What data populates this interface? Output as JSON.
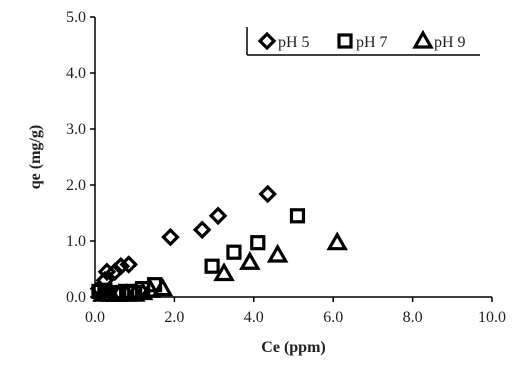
{
  "chart_data": {
    "type": "scatter",
    "xlabel": "Ce (ppm)",
    "ylabel": "qe (mg/g)",
    "xlim": [
      0,
      10
    ],
    "ylim": [
      0,
      5
    ],
    "x_ticks": [
      "0.0",
      "2.0",
      "4.0",
      "6.0",
      "8.0",
      "10.0"
    ],
    "y_ticks": [
      "0.0",
      "1.0",
      "2.0",
      "3.0",
      "4.0",
      "5.0"
    ],
    "grid": false,
    "legend_position": "top-right",
    "series": [
      {
        "name": "pH 5",
        "marker": "diamond",
        "points": [
          [
            0.1,
            0.15
          ],
          [
            0.25,
            0.3
          ],
          [
            0.3,
            0.45
          ],
          [
            0.5,
            0.45
          ],
          [
            0.65,
            0.55
          ],
          [
            0.85,
            0.58
          ],
          [
            1.9,
            1.07
          ],
          [
            2.7,
            1.2
          ],
          [
            3.1,
            1.45
          ],
          [
            4.35,
            1.84
          ]
        ]
      },
      {
        "name": "pH 7",
        "marker": "square",
        "points": [
          [
            0.1,
            0.1
          ],
          [
            0.25,
            0.12
          ],
          [
            0.35,
            0.05
          ],
          [
            0.5,
            0.08
          ],
          [
            0.6,
            0.05
          ],
          [
            0.8,
            0.1
          ],
          [
            1.0,
            0.08
          ],
          [
            1.2,
            0.15
          ],
          [
            1.5,
            0.22
          ],
          [
            2.95,
            0.55
          ],
          [
            3.5,
            0.8
          ],
          [
            4.1,
            0.97
          ],
          [
            5.1,
            1.45
          ]
        ]
      },
      {
        "name": "pH 9",
        "marker": "triangle",
        "points": [
          [
            0.2,
            0.05
          ],
          [
            0.4,
            0.05
          ],
          [
            0.6,
            0.05
          ],
          [
            0.8,
            0.05
          ],
          [
            1.0,
            0.05
          ],
          [
            1.2,
            0.08
          ],
          [
            1.4,
            0.12
          ],
          [
            1.7,
            0.15
          ],
          [
            3.25,
            0.42
          ],
          [
            3.9,
            0.62
          ],
          [
            4.6,
            0.75
          ],
          [
            6.1,
            0.97
          ]
        ]
      }
    ]
  }
}
